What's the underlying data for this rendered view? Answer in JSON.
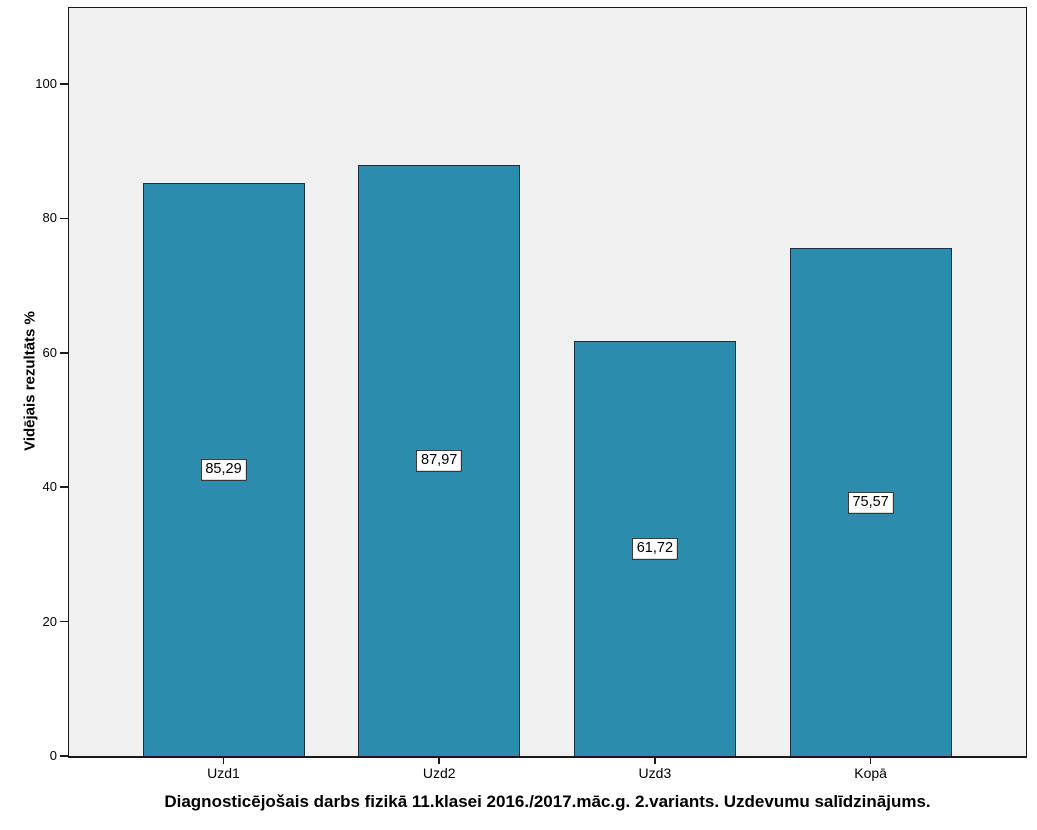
{
  "chart_data": {
    "type": "bar",
    "categories": [
      "Uzd1",
      "Uzd2",
      "Uzd3",
      "Kopā"
    ],
    "values": [
      85.29,
      87.97,
      61.72,
      75.57
    ],
    "value_labels": [
      "85,29",
      "87,97",
      "61,72",
      "75,57"
    ],
    "title": "Diagnosticējošais darbs fizikā 11.klasei 2016./2017.māc.g. 2.variants. Uzdevumu salīdzinājums.",
    "xlabel": "",
    "ylabel": "Vidējais rezultāts %",
    "yticks": [
      0,
      20,
      40,
      60,
      80,
      100
    ],
    "ylim": [
      0,
      111.4
    ],
    "grid": false,
    "legend": "none",
    "value_label_position": "middle-of-bar-in-white-box",
    "colors": {
      "bar_fill": "#2B8CAD",
      "bar_border": "#17313f",
      "plot_background": "#f0f0f0",
      "page_background": "#ffffff",
      "axis": "#1a1a1a",
      "text": "#000000"
    }
  }
}
